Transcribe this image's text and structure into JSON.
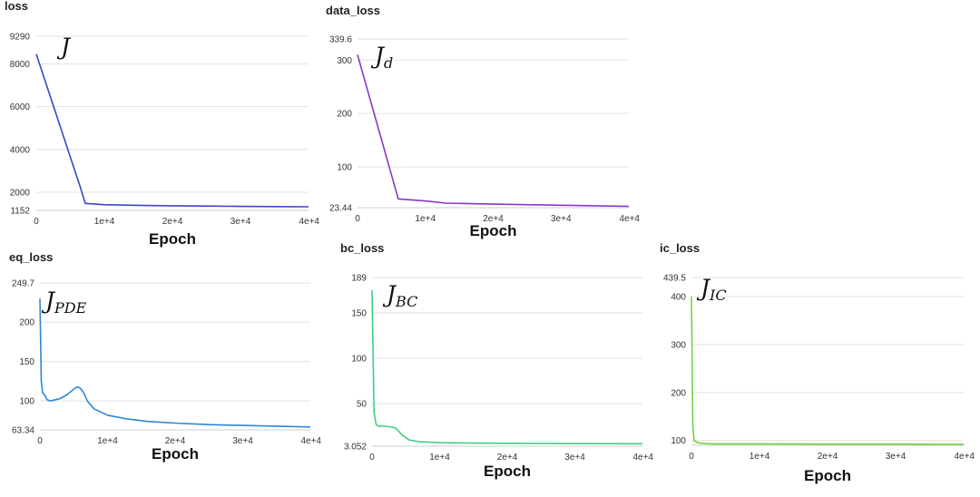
{
  "chart_data": [
    {
      "type": "line",
      "title": "loss",
      "symbol": "J",
      "symbol_sub": "",
      "xlabel": "Epoch",
      "color": "#3b47c4",
      "xlim": [
        0,
        40000
      ],
      "ylim": [
        1152,
        9290
      ],
      "x_ticks": [
        0,
        10000,
        20000,
        30000,
        40000
      ],
      "x_tick_labels": [
        "0",
        "1e+4",
        "2e+4",
        "3e+4",
        "4e+4"
      ],
      "y_ticks": [
        1152,
        2000,
        4000,
        6000,
        8000,
        9290
      ],
      "y_tick_labels": [
        "1152",
        "2000",
        "4000",
        "6000",
        "8000",
        "9290"
      ],
      "x": [
        0,
        6500,
        7200,
        10000,
        15000,
        20000,
        25000,
        30000,
        35000,
        40000
      ],
      "y": [
        8450,
        2200,
        1480,
        1420,
        1390,
        1370,
        1355,
        1340,
        1330,
        1320
      ]
    },
    {
      "type": "line",
      "title": "data_loss",
      "symbol": "J",
      "symbol_sub": "d",
      "xlabel": "Epoch",
      "color": "#8a34c9",
      "xlim": [
        0,
        40000
      ],
      "ylim": [
        23.44,
        339.6
      ],
      "x_ticks": [
        0,
        10000,
        20000,
        30000,
        40000
      ],
      "x_tick_labels": [
        "0",
        "1e+4",
        "2e+4",
        "3e+4",
        "4e+4"
      ],
      "y_ticks": [
        23.44,
        100,
        200,
        300,
        339.6
      ],
      "y_tick_labels": [
        "23.44",
        "100",
        "200",
        "300",
        "339.6"
      ],
      "x": [
        0,
        6000,
        10000,
        13000,
        20000,
        30000,
        40000
      ],
      "y": [
        310,
        40,
        36,
        32,
        30,
        28,
        26
      ]
    },
    {
      "type": "line",
      "title": "eq_loss",
      "symbol": "J",
      "symbol_sub": "PDE",
      "xlabel": "Epoch",
      "color": "#2f86d8",
      "xlim": [
        0,
        40000
      ],
      "ylim": [
        63.34,
        249.7
      ],
      "x_ticks": [
        0,
        10000,
        20000,
        30000,
        40000
      ],
      "x_tick_labels": [
        "0",
        "1e+4",
        "2e+4",
        "3e+4",
        "4e+4"
      ],
      "y_ticks": [
        63.34,
        100,
        150,
        200,
        249.7
      ],
      "y_tick_labels": [
        "63.34",
        "100",
        "150",
        "200",
        "249.7"
      ],
      "x": [
        0,
        200,
        400,
        700,
        1000,
        1500,
        2000,
        3000,
        4000,
        5000,
        5500,
        6000,
        6500,
        7000,
        8000,
        10000,
        13000,
        16000,
        20000,
        25000,
        30000,
        35000,
        40000
      ],
      "y": [
        230,
        125,
        110,
        108,
        102,
        100,
        101,
        103,
        108,
        115,
        118,
        116,
        110,
        100,
        90,
        82,
        77,
        74,
        72,
        70,
        69,
        68,
        67
      ]
    },
    {
      "type": "line",
      "title": "bc_loss",
      "symbol": "J",
      "symbol_sub": "BC",
      "xlabel": "Epoch",
      "color": "#3ccf83",
      "xlim": [
        0,
        40000
      ],
      "ylim": [
        3.052,
        189
      ],
      "x_ticks": [
        0,
        10000,
        20000,
        30000,
        40000
      ],
      "x_tick_labels": [
        "0",
        "1e+4",
        "2e+4",
        "3e+4",
        "4e+4"
      ],
      "y_ticks": [
        3.052,
        50,
        100,
        150,
        189
      ],
      "y_tick_labels": [
        "3.052",
        "50",
        "100",
        "150",
        "189"
      ],
      "x": [
        0,
        300,
        600,
        1000,
        2000,
        3000,
        3500,
        4500,
        5500,
        7000,
        10000,
        15000,
        20000,
        30000,
        40000
      ],
      "y": [
        175,
        40,
        27,
        25,
        25,
        24,
        23,
        15,
        10,
        8,
        7,
        6.5,
        6.3,
        6,
        5.8
      ]
    },
    {
      "type": "line",
      "title": "ic_loss",
      "symbol": "J",
      "symbol_sub": "IC",
      "xlabel": "Epoch",
      "color": "#6fd34a",
      "xlim": [
        0,
        40000
      ],
      "ylim": [
        90,
        439.5
      ],
      "x_ticks": [
        0,
        10000,
        20000,
        30000,
        40000
      ],
      "x_tick_labels": [
        "0",
        "1e+4",
        "2e+4",
        "3e+4",
        "4e+4"
      ],
      "y_ticks": [
        100,
        200,
        300,
        400,
        439.5
      ],
      "y_tick_labels": [
        "100",
        "200",
        "300",
        "400",
        "439.5"
      ],
      "x": [
        0,
        200,
        400,
        800,
        1500,
        3000,
        10000,
        20000,
        30000,
        40000
      ],
      "y": [
        400,
        130,
        100,
        96,
        94,
        93,
        93,
        92.5,
        92.5,
        92
      ]
    }
  ]
}
